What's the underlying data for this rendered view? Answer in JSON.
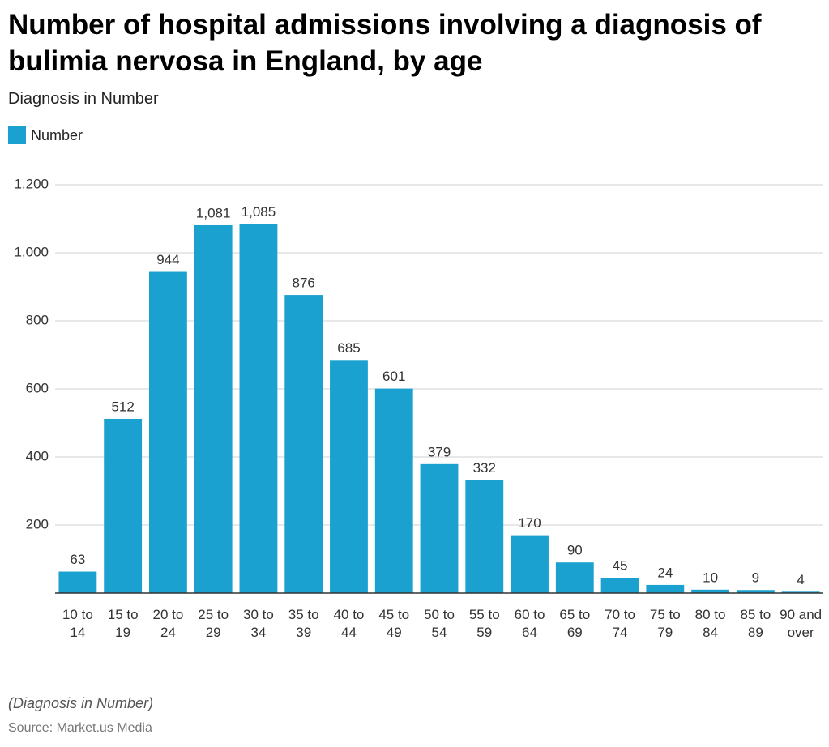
{
  "chart_data": {
    "type": "bar",
    "title": "Number of hospital admissions involving a diagnosis of bulimia nervosa in England, by age",
    "subtitle": "Diagnosis in Number",
    "note": "(Diagnosis in Number)",
    "source": "Source: Market.us Media",
    "legend": "Number",
    "color": "#1ba1d0",
    "categories": [
      "10 to 14",
      "15 to 19",
      "20 to 24",
      "25 to 29",
      "30 to 34",
      "35 to 39",
      "40 to 44",
      "45 to 49",
      "50 to 54",
      "55 to 59",
      "60 to 64",
      "65 to 69",
      "70 to 74",
      "75 to 79",
      "80 to 84",
      "85 to 89",
      "90 and over"
    ],
    "values": [
      63,
      512,
      944,
      1081,
      1085,
      876,
      685,
      601,
      379,
      332,
      170,
      90,
      45,
      24,
      10,
      9,
      4
    ],
    "value_labels": [
      "63",
      "512",
      "944",
      "1,081",
      "1,085",
      "876",
      "685",
      "601",
      "379",
      "332",
      "170",
      "90",
      "45",
      "24",
      "10",
      "9",
      "4"
    ],
    "ylim": [
      0,
      1200
    ],
    "yticks": [
      200,
      400,
      600,
      800,
      {
        "value": 1000,
        "label": "1,000"
      },
      {
        "value": 1200,
        "label": "1,200"
      }
    ],
    "grid": true
  }
}
